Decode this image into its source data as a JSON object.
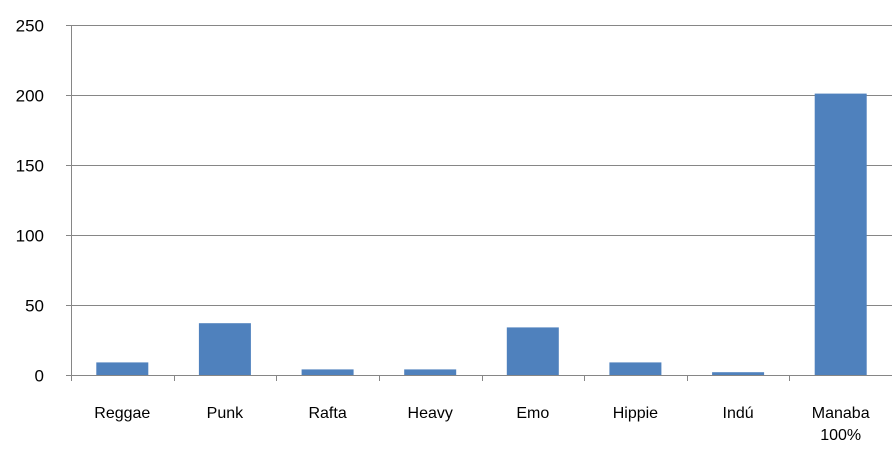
{
  "chart_data": {
    "type": "bar",
    "categories": [
      "Reggae",
      "Punk",
      "Rafta",
      "Heavy",
      "Emo",
      "Hippie",
      "Indú",
      "Manaba 100%"
    ],
    "category_labels": [
      [
        "Reggae"
      ],
      [
        "Punk"
      ],
      [
        "Rafta"
      ],
      [
        "Heavy"
      ],
      [
        "Emo"
      ],
      [
        "Hippie"
      ],
      [
        "Indú"
      ],
      [
        "Manaba",
        "100%"
      ]
    ],
    "values": [
      9,
      37,
      4,
      4,
      34,
      9,
      2,
      201
    ],
    "ylim": [
      0,
      250
    ],
    "yticks": [
      0,
      50,
      100,
      150,
      200,
      250
    ],
    "grid": true,
    "legend": "none",
    "title": "",
    "xlabel": "",
    "ylabel": "",
    "colors": {
      "bar": "#4f81bd",
      "grid": "#868686",
      "axis": "#868686"
    }
  }
}
